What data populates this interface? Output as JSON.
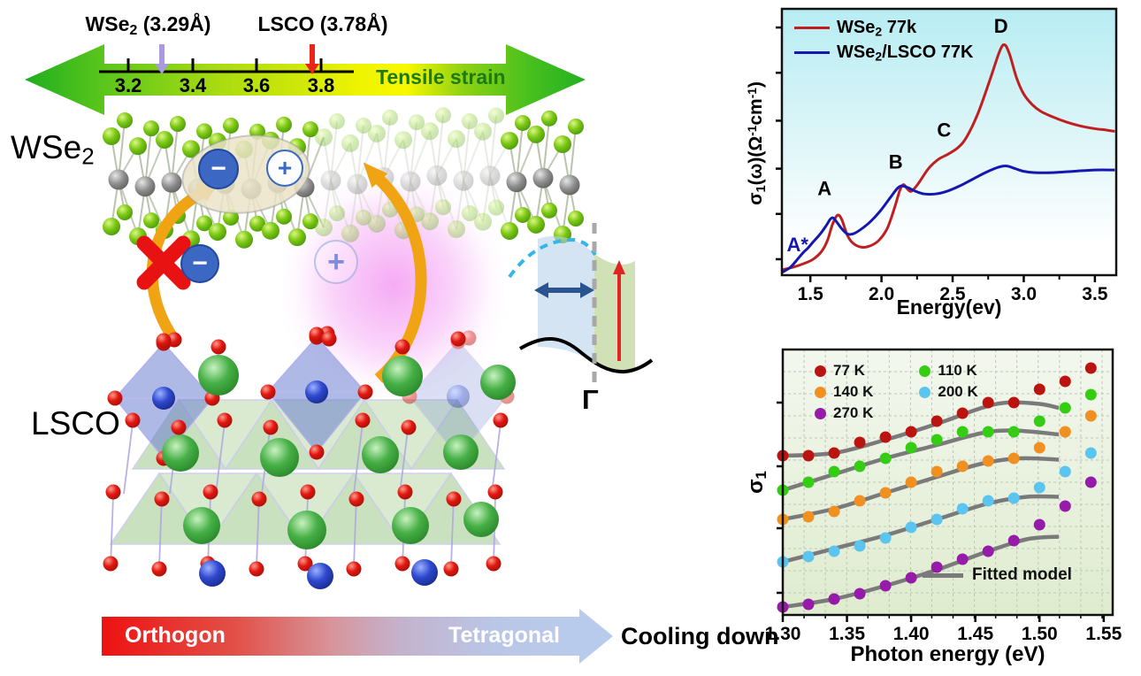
{
  "left_panel": {
    "strain": {
      "wse2_prefix": "WSe",
      "wse2_sub": "2",
      "wse2_suffix": " (3.29Å)",
      "lsco_label": "LSCO  (3.78Å)",
      "ticks": [
        "3.2",
        "3.4",
        "3.6",
        "3.8"
      ],
      "title": "Tensile strain",
      "title_color": "#1c7a10",
      "wse2_marker_color": "#a99ade",
      "lsco_marker_color": "#ea2418"
    },
    "wse2_layer": {
      "prefix": "WSe",
      "sub": "2"
    },
    "lsco_layer": "LSCO",
    "exciton": {
      "minus": "−",
      "plus": "+"
    },
    "blocked_minus": "−",
    "free_plus": "+",
    "band": {
      "gamma": "Γ"
    },
    "cooling": {
      "left_label": "Orthogon",
      "right_label": "Tetragonal",
      "caption": "Cooling down"
    }
  },
  "chart_data": [
    {
      "type": "line",
      "title": "",
      "xlabel": "Energy(ev)",
      "ylabel_parts": {
        "sigma": "σ",
        "sub": "1",
        "mid": "(ω)(Ω",
        "sup1": "-1",
        "cm": "cm",
        "sup2": "-1",
        "close": ")"
      },
      "xlim": [
        1.3,
        3.65
      ],
      "ylim": [
        0,
        100
      ],
      "grid": false,
      "legend_position": "top-left",
      "bg_top": "#b7edf3",
      "bg_bottom": "#ffffff",
      "xtick_labels": [
        "1.5",
        "2.0",
        "2.5",
        "3.0",
        "3.5"
      ],
      "xtick_values": [
        1.5,
        2.0,
        2.5,
        3.0,
        3.5
      ],
      "minor_ticks": [
        1.75,
        2.25,
        2.75,
        3.25
      ],
      "legend": [
        {
          "prefix": "WSe",
          "sub": "2",
          "suffix": " 77k",
          "color": "#c01f1f"
        },
        {
          "prefix": "WSe",
          "sub": "2",
          "suffix": "/LSCO 77K",
          "color": "#1518b0"
        }
      ],
      "series": [
        {
          "name": "WSe2 77k",
          "color": "#c01f1f",
          "points": [
            [
              1.3,
              2
            ],
            [
              1.38,
              3
            ],
            [
              1.46,
              4.5
            ],
            [
              1.52,
              6
            ],
            [
              1.58,
              9
            ],
            [
              1.62,
              13
            ],
            [
              1.655,
              19
            ],
            [
              1.69,
              22.5
            ],
            [
              1.72,
              21
            ],
            [
              1.76,
              15
            ],
            [
              1.8,
              12
            ],
            [
              1.86,
              10.5
            ],
            [
              1.92,
              11
            ],
            [
              1.98,
              13
            ],
            [
              2.04,
              17.5
            ],
            [
              2.09,
              25
            ],
            [
              2.13,
              32
            ],
            [
              2.155,
              34
            ],
            [
              2.18,
              32.5
            ],
            [
              2.21,
              31.5
            ],
            [
              2.26,
              34.5
            ],
            [
              2.33,
              40
            ],
            [
              2.4,
              43.5
            ],
            [
              2.47,
              45.5
            ],
            [
              2.54,
              48
            ],
            [
              2.6,
              52
            ],
            [
              2.68,
              61
            ],
            [
              2.76,
              73
            ],
            [
              2.83,
              84
            ],
            [
              2.865,
              86.5
            ],
            [
              2.9,
              83
            ],
            [
              2.95,
              74
            ],
            [
              3.0,
              68
            ],
            [
              3.06,
              64
            ],
            [
              3.12,
              61.5
            ],
            [
              3.2,
              59.5
            ],
            [
              3.3,
              57.5
            ],
            [
              3.4,
              56
            ],
            [
              3.5,
              55
            ],
            [
              3.58,
              54.5
            ],
            [
              3.64,
              54
            ]
          ]
        },
        {
          "name": "WSe2/LSCO 77K",
          "color": "#1518b0",
          "points": [
            [
              1.3,
              1
            ],
            [
              1.36,
              3
            ],
            [
              1.41,
              6
            ],
            [
              1.45,
              8.5
            ],
            [
              1.48,
              10
            ],
            [
              1.52,
              12.5
            ],
            [
              1.57,
              15.5
            ],
            [
              1.61,
              18.5
            ],
            [
              1.64,
              21
            ],
            [
              1.66,
              21.5
            ],
            [
              1.685,
              20
            ],
            [
              1.72,
              17.5
            ],
            [
              1.76,
              15.5
            ],
            [
              1.8,
              15.5
            ],
            [
              1.85,
              17
            ],
            [
              1.92,
              20
            ],
            [
              1.99,
              24
            ],
            [
              2.06,
              29
            ],
            [
              2.11,
              32.5
            ],
            [
              2.14,
              33.5
            ],
            [
              2.18,
              33
            ],
            [
              2.24,
              31.5
            ],
            [
              2.3,
              30.5
            ],
            [
              2.38,
              30.5
            ],
            [
              2.46,
              31.5
            ],
            [
              2.55,
              33.5
            ],
            [
              2.64,
              36
            ],
            [
              2.73,
              38.5
            ],
            [
              2.82,
              40.5
            ],
            [
              2.88,
              41
            ],
            [
              2.94,
              40
            ],
            [
              3.0,
              39
            ],
            [
              3.08,
              38.5
            ],
            [
              3.2,
              38.5
            ],
            [
              3.35,
              39
            ],
            [
              3.5,
              39.5
            ],
            [
              3.64,
              39.5
            ]
          ]
        }
      ],
      "annotations": [
        {
          "text": "A",
          "x": 1.6,
          "y": 30,
          "color": "#000000"
        },
        {
          "text": "A*",
          "x": 1.41,
          "y": 9,
          "color": "#1518b0"
        },
        {
          "text": "B",
          "x": 2.1,
          "y": 40,
          "color": "#000000"
        },
        {
          "text": "C",
          "x": 2.44,
          "y": 52,
          "color": "#000000"
        },
        {
          "text": "D",
          "x": 2.84,
          "y": 91,
          "color": "#000000"
        }
      ]
    },
    {
      "type": "scatter",
      "title": "",
      "xlabel": "Photon energy (eV)",
      "ylabel_parts": {
        "sigma": "σ",
        "sub": "1"
      },
      "xlim": [
        1.3,
        1.557
      ],
      "ylim": [
        0,
        100
      ],
      "grid": true,
      "bg_top": "#f3f7ee",
      "bg_bottom": "#dfeccf",
      "xtick_labels": [
        "1.30",
        "1.35",
        "1.40",
        "1.45",
        "1.50",
        "1.55"
      ],
      "xtick_values": [
        1.3,
        1.35,
        1.4,
        1.45,
        1.5,
        1.55
      ],
      "x_values": [
        1.3,
        1.32,
        1.34,
        1.36,
        1.38,
        1.4,
        1.42,
        1.44,
        1.46,
        1.48,
        1.5,
        1.52,
        1.54
      ],
      "series": [
        {
          "name": "77 K",
          "color": "#bb1410",
          "values": [
            60,
            60,
            61,
            65,
            67,
            69,
            73,
            76,
            80,
            80,
            85,
            88,
            93
          ]
        },
        {
          "name": "110 K",
          "color": "#35cc14",
          "values": [
            47,
            50,
            54,
            56,
            59,
            63,
            66,
            69,
            69,
            69,
            73,
            78,
            83
          ]
        },
        {
          "name": "140 K",
          "color": "#ef9021",
          "values": [
            36,
            37,
            39,
            43,
            46,
            50,
            54,
            56,
            58,
            59,
            63,
            69,
            75
          ]
        },
        {
          "name": "200 K",
          "color": "#5bc4ef",
          "values": [
            20,
            22,
            24,
            26,
            29,
            33,
            36,
            40,
            43,
            44,
            48,
            54,
            61
          ]
        },
        {
          "name": "270 K",
          "color": "#951ba8",
          "values": [
            3,
            4,
            6,
            8,
            11,
            14,
            18,
            21,
            24,
            28,
            34,
            41,
            50
          ]
        }
      ],
      "fits": [
        {
          "points": [
            [
              1.3,
              60
            ],
            [
              1.34,
              61
            ],
            [
              1.38,
              66
            ],
            [
              1.42,
              72
            ],
            [
              1.455,
              78
            ],
            [
              1.475,
              80
            ],
            [
              1.5,
              79.5
            ],
            [
              1.515,
              78
            ]
          ]
        },
        {
          "points": [
            [
              1.3,
              47
            ],
            [
              1.34,
              53
            ],
            [
              1.38,
              59
            ],
            [
              1.42,
              64
            ],
            [
              1.455,
              68.5
            ],
            [
              1.48,
              69.5
            ],
            [
              1.515,
              68
            ]
          ]
        },
        {
          "points": [
            [
              1.3,
              36
            ],
            [
              1.34,
              40
            ],
            [
              1.38,
              46
            ],
            [
              1.42,
              52
            ],
            [
              1.455,
              57
            ],
            [
              1.485,
              59
            ],
            [
              1.515,
              58.5
            ]
          ]
        },
        {
          "points": [
            [
              1.3,
              20
            ],
            [
              1.34,
              25
            ],
            [
              1.38,
              30
            ],
            [
              1.42,
              36
            ],
            [
              1.46,
              42
            ],
            [
              1.49,
              44.5
            ],
            [
              1.515,
              44.5
            ]
          ]
        },
        {
          "points": [
            [
              1.3,
              3
            ],
            [
              1.34,
              6
            ],
            [
              1.38,
              11
            ],
            [
              1.42,
              17
            ],
            [
              1.46,
              24
            ],
            [
              1.49,
              28.5
            ],
            [
              1.515,
              29.5
            ]
          ]
        }
      ],
      "fit_color": "#7a7a7a",
      "fit_legend": {
        "label": "Fitted model"
      },
      "legend_columns": [
        [
          0,
          2,
          4
        ],
        [
          1,
          3
        ]
      ]
    }
  ]
}
